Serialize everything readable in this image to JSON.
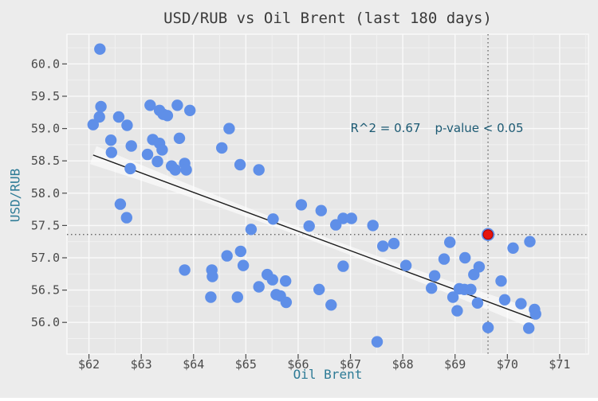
{
  "title": "USD/RUB vs Oil Brent (last 180 days)",
  "annotation": {
    "r_squared": "R^2 = 0.67",
    "p_value": "p-value < 0.05"
  },
  "colors": {
    "figure_bg": "#ececec",
    "panel_bg": "#e7e7e7",
    "grid_major": "#fafafa",
    "grid_minor": "#f2f2f2",
    "point_blue": "#5f8fe8",
    "highlight_red": "#e8150c",
    "highlight_red_edge": "#a40000",
    "trend_line": "#1a1a1a",
    "confidence_band": "#ffffff",
    "crosshair": "#555555",
    "tick_text": "#4a4a4a",
    "tick_mark": "#4a4a4a",
    "axis_label": "#2e7b96",
    "annotation_text": "#1c5a73",
    "title_text": "#3a3a3a"
  },
  "chart_data": {
    "type": "scatter",
    "title": "USD/RUB vs Oil Brent (last 180 days)",
    "xlabel": "Oil Brent",
    "ylabel": "USD/RUB",
    "xlim": [
      61.58,
      71.55
    ],
    "ylim": [
      55.51,
      60.46
    ],
    "grid": true,
    "legend_position": "none",
    "x_ticks": {
      "values": [
        62,
        63,
        64,
        65,
        66,
        67,
        68,
        69,
        70,
        71
      ],
      "labels": [
        "$62",
        "$63",
        "$64",
        "$65",
        "$66",
        "$67",
        "$68",
        "$69",
        "$70",
        "$71"
      ]
    },
    "y_ticks": {
      "values": [
        56.0,
        56.5,
        57.0,
        57.5,
        58.0,
        58.5,
        59.0,
        59.5,
        60.0
      ],
      "labels": [
        "56.0",
        "56.5",
        "57.0",
        "57.5",
        "58.0",
        "58.5",
        "59.0",
        "59.5",
        "60.0"
      ]
    },
    "x_minor_step": 0.5,
    "y_minor_step": 0.25,
    "points": [
      [
        62.21,
        60.23
      ],
      [
        62.23,
        59.34
      ],
      [
        62.2,
        59.18
      ],
      [
        62.08,
        59.06
      ],
      [
        62.57,
        59.18
      ],
      [
        62.73,
        59.05
      ],
      [
        63.17,
        59.36
      ],
      [
        63.35,
        59.28
      ],
      [
        63.42,
        59.22
      ],
      [
        63.5,
        59.2
      ],
      [
        63.69,
        59.36
      ],
      [
        63.93,
        59.28
      ],
      [
        64.68,
        59.0
      ],
      [
        62.42,
        58.82
      ],
      [
        63.22,
        58.83
      ],
      [
        63.73,
        58.85
      ],
      [
        62.43,
        58.63
      ],
      [
        62.81,
        58.73
      ],
      [
        63.12,
        58.6
      ],
      [
        63.35,
        58.77
      ],
      [
        63.4,
        58.67
      ],
      [
        63.31,
        58.49
      ],
      [
        63.58,
        58.42
      ],
      [
        63.65,
        58.36
      ],
      [
        63.83,
        58.46
      ],
      [
        63.86,
        58.36
      ],
      [
        62.79,
        58.38
      ],
      [
        64.54,
        58.7
      ],
      [
        64.89,
        58.44
      ],
      [
        62.6,
        57.83
      ],
      [
        62.72,
        57.62
      ],
      [
        65.25,
        58.36
      ],
      [
        66.06,
        57.82
      ],
      [
        66.44,
        57.73
      ],
      [
        65.52,
        57.6
      ],
      [
        66.21,
        57.49
      ],
      [
        66.72,
        57.51
      ],
      [
        66.86,
        57.61
      ],
      [
        67.02,
        57.61
      ],
      [
        67.43,
        57.5
      ],
      [
        65.1,
        57.44
      ],
      [
        67.62,
        57.18
      ],
      [
        67.83,
        57.22
      ],
      [
        67.51,
        55.7
      ],
      [
        65.41,
        56.74
      ],
      [
        65.51,
        56.66
      ],
      [
        65.25,
        56.55
      ],
      [
        65.76,
        56.64
      ],
      [
        65.58,
        56.43
      ],
      [
        65.66,
        56.41
      ],
      [
        65.77,
        56.31
      ],
      [
        66.4,
        56.51
      ],
      [
        66.63,
        56.27
      ],
      [
        66.86,
        56.87
      ],
      [
        68.06,
        56.88
      ],
      [
        64.64,
        57.03
      ],
      [
        64.9,
        57.1
      ],
      [
        64.95,
        56.88
      ],
      [
        63.83,
        56.81
      ],
      [
        64.35,
        56.81
      ],
      [
        64.36,
        56.71
      ],
      [
        64.33,
        56.39
      ],
      [
        64.84,
        56.39
      ],
      [
        68.79,
        56.98
      ],
      [
        68.9,
        57.24
      ],
      [
        68.61,
        56.72
      ],
      [
        68.55,
        56.53
      ],
      [
        69.19,
        57.0
      ],
      [
        70.11,
        57.15
      ],
      [
        70.43,
        57.25
      ],
      [
        69.46,
        56.86
      ],
      [
        69.36,
        56.74
      ],
      [
        69.08,
        56.52
      ],
      [
        69.18,
        56.51
      ],
      [
        69.3,
        56.51
      ],
      [
        68.96,
        56.39
      ],
      [
        69.04,
        56.18
      ],
      [
        69.43,
        56.3
      ],
      [
        69.63,
        55.92
      ],
      [
        69.88,
        56.64
      ],
      [
        69.95,
        56.35
      ],
      [
        70.26,
        56.29
      ],
      [
        70.52,
        56.2
      ],
      [
        70.54,
        56.13
      ],
      [
        70.41,
        55.91
      ]
    ],
    "highlight_point": {
      "x": 69.63,
      "y": 57.36
    },
    "crosshair": {
      "x": 69.63,
      "y": 57.36
    },
    "trend_line": {
      "x1": 62.08,
      "y1": 58.59,
      "x2": 70.49,
      "y2": 56.06
    },
    "annotation": {
      "text": "R^2 = 0.67   p-value < 0.05",
      "x": 68.66,
      "y": 58.99
    }
  }
}
